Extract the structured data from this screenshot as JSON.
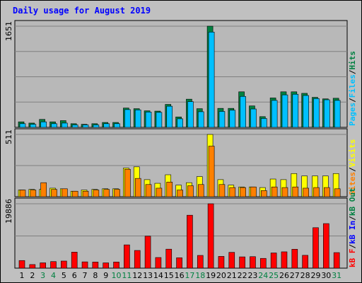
{
  "title": "Daily usage for August 2019",
  "colors": {
    "hits": "#008040",
    "files": "#00c0ff",
    "pages": "#00c0ff",
    "visits": "#ffff00",
    "sites": "#ff8000",
    "kbin": "#0000ff",
    "kbout": "#008040",
    "kbf": "#ff0000",
    "slash": "#000000",
    "weekday_label": "#000000",
    "weekend_label": "#008040"
  },
  "legend": {
    "top": {
      "pages": "Pages",
      "files": "Files",
      "hits": "Hits",
      "sep": "/"
    },
    "mid": {
      "sites": "Sites",
      "visits": "Visits",
      "sep": "/"
    },
    "bot": {
      "kbf": "kB F",
      "kbin": "kB In",
      "kbout": "kB Out",
      "sep": "/"
    }
  },
  "chart_data": {
    "type": "bar",
    "title": "Daily usage for August 2019",
    "categories": [
      "1",
      "2",
      "3",
      "4",
      "5",
      "6",
      "7",
      "8",
      "9",
      "10",
      "11",
      "12",
      "13",
      "14",
      "15",
      "16",
      "17",
      "18",
      "19",
      "20",
      "21",
      "22",
      "23",
      "24",
      "25",
      "26",
      "27",
      "28",
      "29",
      "30",
      "31"
    ],
    "weekend_days": [
      "3",
      "4",
      "10",
      "11",
      "17",
      "18",
      "24",
      "25",
      "31"
    ],
    "panels": [
      {
        "name": "top",
        "ymax_label": "1651",
        "ylim": [
          0,
          1651
        ],
        "series": [
          {
            "name": "Hits",
            "values": [
              90,
              70,
              130,
              90,
              110,
              60,
              50,
              60,
              80,
              80,
              315,
              305,
              270,
              265,
              375,
              170,
              460,
              305,
              1651,
              310,
              310,
              580,
              350,
              175,
              480,
              580,
              580,
              555,
              490,
              465,
              475
            ]
          },
          {
            "name": "Files",
            "values": [
              60,
              50,
              90,
              60,
              70,
              40,
              40,
              40,
              60,
              60,
              290,
              285,
              250,
              245,
              345,
              140,
              420,
              255,
              1555,
              260,
              280,
              505,
              300,
              145,
              440,
              530,
              540,
              520,
              470,
              450,
              440
            ]
          },
          {
            "name": "Pages",
            "values": [
              8,
              6,
              10,
              8,
              9,
              5,
              5,
              6,
              7,
              7,
              15,
              14,
              13,
              12,
              16,
              9,
              19,
              14,
              40,
              14,
              14,
              20,
              16,
              10,
              19,
              21,
              21,
              20,
              19,
              18,
              18
            ]
          }
        ]
      },
      {
        "name": "mid",
        "ymax_label": "511",
        "ylim": [
          0,
          511
        ],
        "series": [
          {
            "name": "Visits",
            "values": [
              55,
              60,
              60,
              70,
              65,
              45,
              55,
              60,
              65,
              65,
              235,
              245,
              140,
              110,
              180,
              95,
              115,
              165,
              511,
              140,
              95,
              80,
              80,
              75,
              145,
              140,
              190,
              170,
              170,
              170,
              190
            ]
          },
          {
            "name": "Sites",
            "values": [
              55,
              55,
              115,
              60,
              65,
              45,
              45,
              55,
              60,
              60,
              225,
              150,
              100,
              70,
              120,
              55,
              90,
              100,
              415,
              100,
              75,
              75,
              80,
              50,
              80,
              75,
              80,
              70,
              75,
              75,
              65
            ]
          }
        ]
      },
      {
        "name": "bot",
        "ymax_label": "19886",
        "ylim": [
          0,
          19886
        ],
        "series": [
          {
            "name": "kB F",
            "values": [
              0,
              0,
              0,
              0,
              0,
              0,
              0,
              0,
              0,
              0,
              0,
              0,
              0,
              0,
              0,
              0,
              0,
              0,
              0,
              0,
              0,
              0,
              0,
              0,
              0,
              0,
              0,
              0,
              0,
              0,
              0
            ]
          },
          {
            "name": "kB In",
            "values": [
              0,
              0,
              0,
              0,
              0,
              0,
              0,
              0,
              0,
              0,
              0,
              0,
              0,
              0,
              0,
              0,
              0,
              0,
              0,
              0,
              0,
              0,
              0,
              0,
              0,
              0,
              0,
              0,
              0,
              0,
              0
            ]
          },
          {
            "name": "kB Out",
            "values": [
              2350,
              1110,
              1640,
              2030,
              2190,
              4950,
              1940,
              1880,
              1630,
              1890,
              7190,
              5460,
              9880,
              3280,
              5860,
              3210,
              16350,
              3930,
              19886,
              3630,
              4880,
              3480,
              3550,
              3010,
              4690,
              5040,
              5840,
              3960,
              12500,
              13760,
              4800
            ]
          }
        ]
      }
    ]
  }
}
